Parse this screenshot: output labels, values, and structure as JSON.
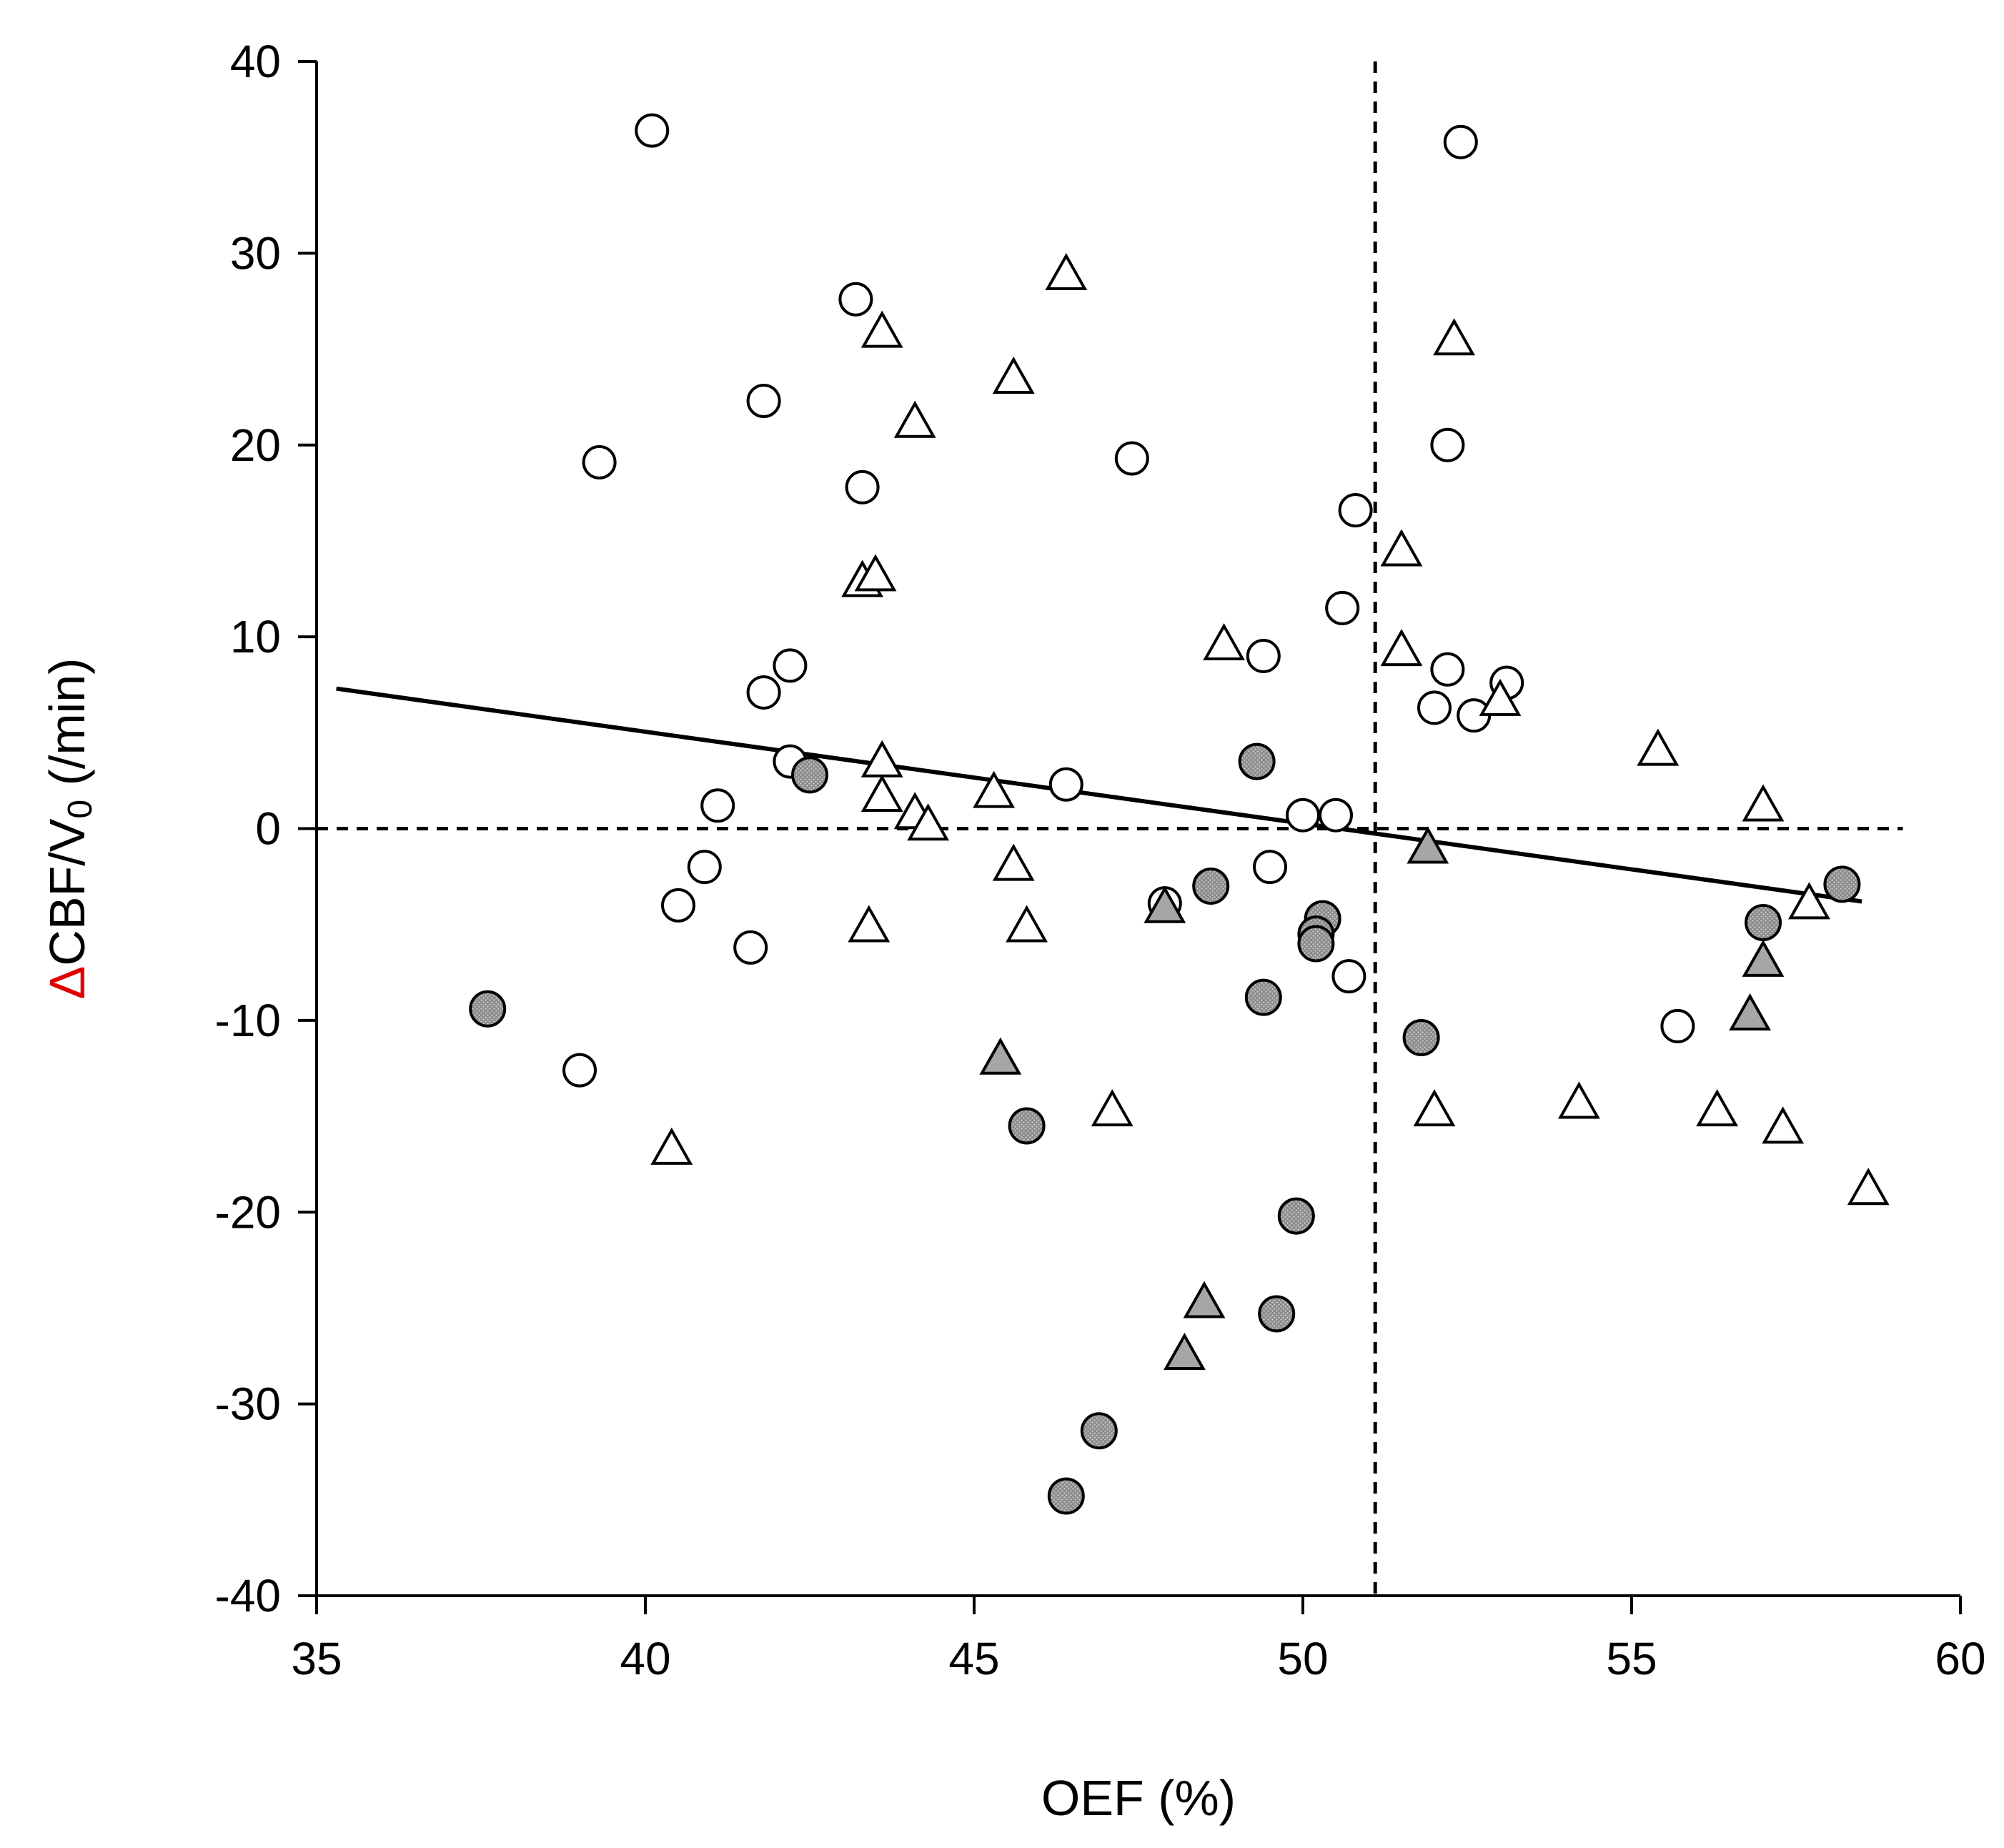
{
  "chart_data": {
    "type": "scatter",
    "title": "",
    "xlabel": "OEF (%)",
    "ylabel": {
      "delta": "Δ",
      "main": "CBF/V",
      "subscript": "0",
      "unit": " (/min)"
    },
    "xlim": [
      35,
      60
    ],
    "ylim": [
      -40,
      40
    ],
    "x_ticks": [
      35,
      40,
      45,
      50,
      55,
      60
    ],
    "y_ticks": [
      -40,
      -30,
      -20,
      -10,
      0,
      10,
      20,
      30,
      40
    ],
    "grid": false,
    "legend": null,
    "reference_lines": {
      "vertical_x": 51.1,
      "horizontal_y": 0
    },
    "regression_line": {
      "x": [
        35.3,
        58.5
      ],
      "y": [
        7.3,
        -3.8
      ]
    },
    "colors": {
      "open_fill": "#ffffff",
      "stippled_circle_fill": "#9a9a9a",
      "gray_triangle_fill": "#a6a6a6",
      "stroke": "#000000",
      "ylabel_delta": "#e00000"
    },
    "series": [
      {
        "name": "open circles",
        "marker": "circle",
        "fill": "open",
        "points": [
          [
            40.1,
            36.4
          ],
          [
            52.4,
            35.8
          ],
          [
            43.2,
            27.6
          ],
          [
            41.8,
            22.3
          ],
          [
            39.3,
            19.1
          ],
          [
            47.4,
            19.3
          ],
          [
            43.3,
            17.8
          ],
          [
            52.2,
            20.0
          ],
          [
            50.8,
            16.6
          ],
          [
            50.6,
            11.5
          ],
          [
            49.4,
            9.0
          ],
          [
            42.2,
            8.5
          ],
          [
            41.8,
            7.1
          ],
          [
            52.2,
            8.3
          ],
          [
            53.1,
            7.6
          ],
          [
            52.0,
            6.3
          ],
          [
            52.6,
            5.9
          ],
          [
            42.2,
            3.5
          ],
          [
            41.1,
            1.2
          ],
          [
            46.4,
            2.3
          ],
          [
            50.0,
            0.7
          ],
          [
            50.5,
            0.7
          ],
          [
            40.9,
            -2.0
          ],
          [
            40.5,
            -4.0
          ],
          [
            49.5,
            -2.0
          ],
          [
            41.6,
            -6.2
          ],
          [
            47.9,
            -3.9
          ],
          [
            50.7,
            -7.7
          ],
          [
            39.0,
            -12.6
          ],
          [
            55.7,
            -10.3
          ]
        ]
      },
      {
        "name": "open triangles",
        "marker": "triangle",
        "fill": "open",
        "points": [
          [
            46.4,
            28.8
          ],
          [
            43.6,
            25.8
          ],
          [
            52.3,
            25.4
          ],
          [
            45.6,
            23.4
          ],
          [
            44.1,
            21.1
          ],
          [
            43.3,
            12.8
          ],
          [
            43.5,
            13.1
          ],
          [
            51.5,
            14.4
          ],
          [
            48.8,
            9.5
          ],
          [
            51.5,
            9.2
          ],
          [
            53.0,
            6.6
          ],
          [
            55.4,
            4.0
          ],
          [
            43.6,
            3.4
          ],
          [
            43.6,
            1.6
          ],
          [
            44.1,
            0.7
          ],
          [
            44.3,
            0.1
          ],
          [
            45.3,
            1.8
          ],
          [
            57.0,
            1.1
          ],
          [
            45.6,
            -2.0
          ],
          [
            43.4,
            -5.2
          ],
          [
            45.8,
            -5.2
          ],
          [
            57.7,
            -4.0
          ],
          [
            47.1,
            -14.8
          ],
          [
            52.0,
            -14.8
          ],
          [
            54.2,
            -14.4
          ],
          [
            56.3,
            -14.8
          ],
          [
            57.3,
            -15.7
          ],
          [
            40.4,
            -16.8
          ],
          [
            58.6,
            -18.9
          ]
        ]
      },
      {
        "name": "stippled circles",
        "marker": "circle",
        "fill": "stippled",
        "points": [
          [
            42.5,
            2.8
          ],
          [
            49.3,
            3.5
          ],
          [
            48.6,
            -3.0
          ],
          [
            50.3,
            -4.7
          ],
          [
            50.2,
            -5.5
          ],
          [
            50.2,
            -6.0
          ],
          [
            49.4,
            -8.8
          ],
          [
            57.0,
            -4.9
          ],
          [
            58.2,
            -2.9
          ],
          [
            51.8,
            -10.9
          ],
          [
            37.6,
            -9.4
          ],
          [
            45.8,
            -15.5
          ],
          [
            49.9,
            -20.2
          ],
          [
            49.6,
            -25.3
          ],
          [
            46.9,
            -31.4
          ],
          [
            46.4,
            -34.8
          ]
        ]
      },
      {
        "name": "gray triangles",
        "marker": "triangle",
        "fill": "gray",
        "points": [
          [
            51.9,
            -1.1
          ],
          [
            47.9,
            -4.2
          ],
          [
            57.0,
            -7.0
          ],
          [
            56.8,
            -9.8
          ],
          [
            45.4,
            -12.1
          ],
          [
            48.5,
            -24.8
          ],
          [
            48.2,
            -27.5
          ]
        ]
      }
    ]
  }
}
